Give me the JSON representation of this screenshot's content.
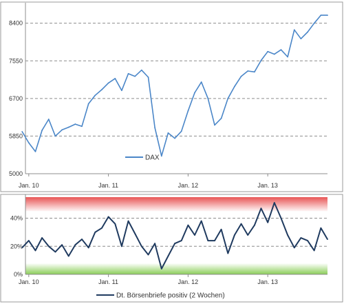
{
  "chart_data": [
    {
      "type": "line",
      "ylim": [
        5000,
        8800
      ],
      "y_ticks": [
        "8400",
        "7550",
        "6700",
        "5850",
        "5000"
      ],
      "x_ticks": [
        "Jan. 10",
        "Jan. 11",
        "Jan. 12",
        "Jan. 13"
      ],
      "grid": "horizontal dashed",
      "legend_position": "bottom-center",
      "series": [
        {
          "name": "DAX",
          "color": "#4a86c8",
          "x": [
            "2009-12",
            "2010-01",
            "2010-02",
            "2010-03",
            "2010-04",
            "2010-05",
            "2010-06",
            "2010-07",
            "2010-08",
            "2010-09",
            "2010-10",
            "2010-11",
            "2010-12",
            "2011-01",
            "2011-02",
            "2011-03",
            "2011-04",
            "2011-05",
            "2011-06",
            "2011-07",
            "2011-08",
            "2011-09",
            "2011-10",
            "2011-11",
            "2011-12",
            "2012-01",
            "2012-02",
            "2012-03",
            "2012-04",
            "2012-05",
            "2012-06",
            "2012-07",
            "2012-08",
            "2012-09",
            "2012-10",
            "2012-11",
            "2012-12",
            "2013-01",
            "2013-02",
            "2013-03",
            "2013-04",
            "2013-05",
            "2013-06",
            "2013-07",
            "2013-08",
            "2013-09",
            "2013-10"
          ],
          "values": [
            5950,
            5700,
            5500,
            5980,
            6230,
            5850,
            5990,
            6050,
            6120,
            6070,
            6580,
            6770,
            6900,
            7050,
            7150,
            6880,
            7260,
            7200,
            7340,
            7180,
            6040,
            5400,
            5920,
            5800,
            5960,
            6420,
            6830,
            7070,
            6700,
            6100,
            6250,
            6700,
            6970,
            7200,
            7320,
            7300,
            7560,
            7760,
            7700,
            7800,
            7640,
            8250,
            8050,
            8200,
            8400,
            8580,
            8580
          ]
        }
      ]
    },
    {
      "type": "line",
      "ylim": [
        0,
        55
      ],
      "y_ticks": [
        "40%",
        "20%",
        "0%"
      ],
      "x_ticks": [
        "Jan. 10",
        "Jan. 11",
        "Jan. 12",
        "Jan. 13"
      ],
      "grid": "horizontal dashed",
      "legend_position": "bottom-center",
      "background_zones": [
        {
          "from": 45,
          "to": 55,
          "color": "#e74c4c"
        },
        {
          "from": 0,
          "to": 8,
          "color": "#7dc845"
        }
      ],
      "series": [
        {
          "name": "Dt. Börsenbriefe positiv (2 Wochen)",
          "color": "#1f3a5f",
          "x": [
            "2009-12",
            "2010-01",
            "2010-02",
            "2010-03",
            "2010-04",
            "2010-05",
            "2010-06",
            "2010-07",
            "2010-08",
            "2010-09",
            "2010-10",
            "2010-11",
            "2010-12",
            "2011-01",
            "2011-02",
            "2011-03",
            "2011-04",
            "2011-05",
            "2011-06",
            "2011-07",
            "2011-08",
            "2011-09",
            "2011-10",
            "2011-11",
            "2011-12",
            "2012-01",
            "2012-02",
            "2012-03",
            "2012-04",
            "2012-05",
            "2012-06",
            "2012-07",
            "2012-08",
            "2012-09",
            "2012-10",
            "2012-11",
            "2012-12",
            "2013-01",
            "2013-02",
            "2013-03",
            "2013-04",
            "2013-05",
            "2013-06",
            "2013-07",
            "2013-08",
            "2013-09",
            "2013-10"
          ],
          "values": [
            19,
            24,
            17,
            26,
            20,
            16,
            21,
            13,
            21,
            25,
            19,
            30,
            33,
            41,
            36,
            20,
            38,
            29,
            20,
            14,
            22,
            4,
            13,
            22,
            24,
            35,
            28,
            38,
            24,
            24,
            32,
            15,
            28,
            36,
            28,
            35,
            47,
            37,
            51,
            40,
            28,
            19,
            26,
            24,
            17,
            33,
            25
          ]
        }
      ]
    }
  ]
}
